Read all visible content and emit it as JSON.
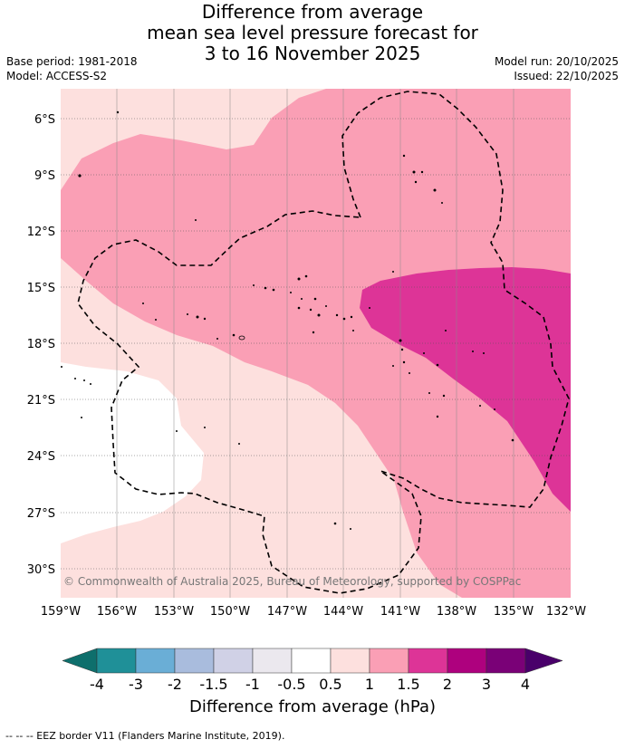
{
  "title": {
    "line1": "Difference from average",
    "line2": "mean sea level pressure forecast for",
    "line3": "3 to 16 November 2025"
  },
  "meta": {
    "base_period": "Base period: 1981-2018",
    "model": "Model: ACCESS-S2",
    "model_run": "Model run: 20/10/2025",
    "issued": "Issued: 22/10/2025"
  },
  "map": {
    "copyright": "© Commonwealth of Australia 2025, Bureau of Meteorology, supported by COSPPac",
    "lat_labels": [
      "6°S",
      "9°S",
      "12°S",
      "15°S",
      "18°S",
      "21°S",
      "24°S",
      "27°S",
      "30°S"
    ],
    "lon_labels": [
      "159°W",
      "156°W",
      "153°W",
      "150°W",
      "147°W",
      "144°W",
      "141°W",
      "138°W",
      "135°W",
      "132°W"
    ]
  },
  "colorbar": {
    "ticks": [
      "-4",
      "-3",
      "-2",
      "-1.5",
      "-1",
      "-0.5",
      "0.5",
      "1",
      "1.5",
      "2",
      "3",
      "4"
    ],
    "colors": [
      "#0e6f6c",
      "#1f9098",
      "#6aaed6",
      "#a9bcdd",
      "#d0d1e6",
      "#ebe8ee",
      "#ffffff",
      "#fde0de",
      "#fa9fb5",
      "#dd3497",
      "#ae017e",
      "#7a0177",
      "#49006a"
    ],
    "label": "Difference from average (hPa)"
  },
  "footer": "-- -- -- EEZ border V11 (Flanders Marine Institute, 2019)."
}
